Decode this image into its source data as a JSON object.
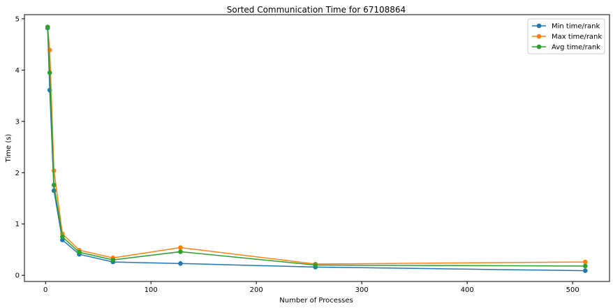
{
  "chart_data": {
    "type": "line",
    "title": "Sorted Communication Time for 67108864",
    "xlabel": "Number of Processes",
    "ylabel": "Time (s)",
    "xlim": [
      -20,
      535
    ],
    "ylim": [
      -0.12,
      5.08
    ],
    "xticks": [
      0,
      100,
      200,
      300,
      400,
      500
    ],
    "yticks": [
      0,
      1,
      2,
      3,
      4,
      5
    ],
    "grid": false,
    "legend_position": "top-right",
    "x": [
      2,
      4,
      8,
      16,
      32,
      64,
      128,
      256,
      512
    ],
    "series": [
      {
        "name": "Min time/rank",
        "color": "#1f77b4",
        "values": [
          4.82,
          3.61,
          1.65,
          0.69,
          0.41,
          0.26,
          0.23,
          0.16,
          0.09
        ]
      },
      {
        "name": "Max time/rank",
        "color": "#ff7f0e",
        "values": [
          4.84,
          4.39,
          2.04,
          0.81,
          0.49,
          0.34,
          0.54,
          0.22,
          0.26
        ]
      },
      {
        "name": "Avg time/rank",
        "color": "#2ca02c",
        "values": [
          4.84,
          3.95,
          1.76,
          0.75,
          0.45,
          0.3,
          0.46,
          0.2,
          0.18
        ]
      }
    ]
  }
}
